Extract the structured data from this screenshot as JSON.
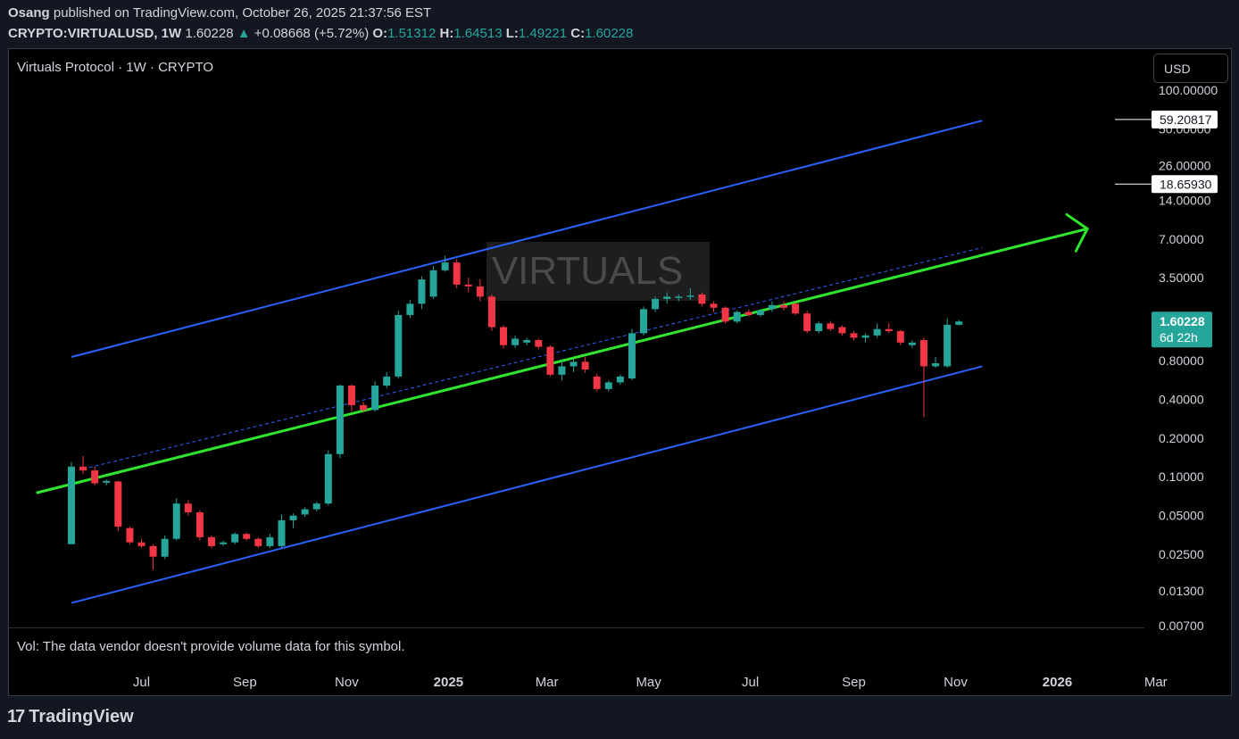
{
  "header": {
    "author": "Osang",
    "published": "published on TradingView.com, October 26, 2025 21:37:56 EST",
    "symbol": "CRYPTO:VIRTUALUSD, 1W",
    "last": "1.60228",
    "arrow": "▲",
    "change": "+0.08668 (+5.72%)",
    "o_label": "O:",
    "o": "1.51312",
    "h_label": "H:",
    "h": "1.64513",
    "l_label": "L:",
    "l": "1.49221",
    "c_label": "C:",
    "c": "1.60228"
  },
  "legend_title": "Virtuals Protocol · 1W · CRYPTO",
  "currency_button": "USD",
  "volume_note": "Vol: The data vendor doesn't provide volume data for this symbol.",
  "watermark": "VIRTUALS",
  "footer_brand": "TradingView",
  "footer_mark": "17",
  "price_tags": {
    "current": "1.60228",
    "countdown": "6d 22h",
    "level_high": "59.20817",
    "level_mid": "18.65930"
  },
  "colors": {
    "up": "#26a69a",
    "down": "#f23645",
    "channel": "#2962ff",
    "midline": "#2ee62e",
    "background": "#000000"
  },
  "chart_data": {
    "type": "candlestick",
    "scale": "log",
    "y_range": [
      0.007,
      100
    ],
    "y_ticks": [
      "100.00000",
      "50.00000",
      "26.00000",
      "14.00000",
      "7.00000",
      "3.50000",
      "1.60000",
      "0.80000",
      "0.40000",
      "0.20000",
      "0.10000",
      "0.05000",
      "0.02500",
      "0.01300",
      "0.00700"
    ],
    "x_ticks": [
      {
        "label": "Jul",
        "date": "2024-07-01",
        "bold": false
      },
      {
        "label": "Sep",
        "date": "2024-09-01",
        "bold": false
      },
      {
        "label": "Nov",
        "date": "2024-11-01",
        "bold": false
      },
      {
        "label": "2025",
        "date": "2025-01-01",
        "bold": true
      },
      {
        "label": "Mar",
        "date": "2025-03-01",
        "bold": false
      },
      {
        "label": "May",
        "date": "2025-05-01",
        "bold": false
      },
      {
        "label": "Jul",
        "date": "2025-07-01",
        "bold": false
      },
      {
        "label": "Sep",
        "date": "2025-09-01",
        "bold": false
      },
      {
        "label": "Nov",
        "date": "2025-11-01",
        "bold": false
      },
      {
        "label": "2026",
        "date": "2026-01-01",
        "bold": true
      },
      {
        "label": "Mar",
        "date": "2026-03-01",
        "bold": false
      }
    ],
    "candles": [
      {
        "date": "2024-05-20",
        "o": 0.03,
        "h": 0.13,
        "l": 0.03,
        "c": 0.12
      },
      {
        "date": "2024-05-27",
        "o": 0.12,
        "h": 0.145,
        "l": 0.105,
        "c": 0.112
      },
      {
        "date": "2024-06-03",
        "o": 0.112,
        "h": 0.12,
        "l": 0.086,
        "c": 0.089
      },
      {
        "date": "2024-06-10",
        "o": 0.09,
        "h": 0.095,
        "l": 0.086,
        "c": 0.093
      },
      {
        "date": "2024-06-17",
        "o": 0.092,
        "h": 0.093,
        "l": 0.038,
        "c": 0.041
      },
      {
        "date": "2024-06-24",
        "o": 0.04,
        "h": 0.041,
        "l": 0.03,
        "c": 0.031
      },
      {
        "date": "2024-07-01",
        "o": 0.031,
        "h": 0.033,
        "l": 0.028,
        "c": 0.029
      },
      {
        "date": "2024-07-08",
        "o": 0.029,
        "h": 0.03,
        "l": 0.019,
        "c": 0.024
      },
      {
        "date": "2024-07-15",
        "o": 0.024,
        "h": 0.035,
        "l": 0.023,
        "c": 0.033
      },
      {
        "date": "2024-07-22",
        "o": 0.033,
        "h": 0.068,
        "l": 0.032,
        "c": 0.062
      },
      {
        "date": "2024-07-29",
        "o": 0.062,
        "h": 0.066,
        "l": 0.05,
        "c": 0.053
      },
      {
        "date": "2024-08-05",
        "o": 0.053,
        "h": 0.055,
        "l": 0.032,
        "c": 0.034
      },
      {
        "date": "2024-08-12",
        "o": 0.034,
        "h": 0.035,
        "l": 0.028,
        "c": 0.029
      },
      {
        "date": "2024-08-19",
        "o": 0.03,
        "h": 0.032,
        "l": 0.029,
        "c": 0.031
      },
      {
        "date": "2024-08-26",
        "o": 0.031,
        "h": 0.037,
        "l": 0.03,
        "c": 0.036
      },
      {
        "date": "2024-09-02",
        "o": 0.036,
        "h": 0.037,
        "l": 0.032,
        "c": 0.033
      },
      {
        "date": "2024-09-09",
        "o": 0.033,
        "h": 0.034,
        "l": 0.028,
        "c": 0.029
      },
      {
        "date": "2024-09-16",
        "o": 0.029,
        "h": 0.036,
        "l": 0.028,
        "c": 0.034
      },
      {
        "date": "2024-09-23",
        "o": 0.029,
        "h": 0.051,
        "l": 0.028,
        "c": 0.046
      },
      {
        "date": "2024-09-30",
        "o": 0.046,
        "h": 0.052,
        "l": 0.04,
        "c": 0.05
      },
      {
        "date": "2024-10-07",
        "o": 0.051,
        "h": 0.058,
        "l": 0.049,
        "c": 0.056
      },
      {
        "date": "2024-10-14",
        "o": 0.056,
        "h": 0.064,
        "l": 0.054,
        "c": 0.062
      },
      {
        "date": "2024-10-21",
        "o": 0.062,
        "h": 0.16,
        "l": 0.06,
        "c": 0.15
      },
      {
        "date": "2024-10-28",
        "o": 0.15,
        "h": 0.52,
        "l": 0.14,
        "c": 0.51
      },
      {
        "date": "2024-11-04",
        "o": 0.51,
        "h": 0.52,
        "l": 0.32,
        "c": 0.36
      },
      {
        "date": "2024-11-11",
        "o": 0.36,
        "h": 0.38,
        "l": 0.32,
        "c": 0.33
      },
      {
        "date": "2024-11-18",
        "o": 0.33,
        "h": 0.55,
        "l": 0.32,
        "c": 0.51
      },
      {
        "date": "2024-11-25",
        "o": 0.51,
        "h": 0.65,
        "l": 0.49,
        "c": 0.6
      },
      {
        "date": "2024-12-02",
        "o": 0.6,
        "h": 1.95,
        "l": 0.58,
        "c": 1.8
      },
      {
        "date": "2024-12-09",
        "o": 1.8,
        "h": 2.35,
        "l": 1.7,
        "c": 2.2
      },
      {
        "date": "2024-12-16",
        "o": 2.2,
        "h": 3.6,
        "l": 2.0,
        "c": 3.4
      },
      {
        "date": "2024-12-23",
        "o": 2.5,
        "h": 4.3,
        "l": 2.4,
        "c": 4.0
      },
      {
        "date": "2024-12-30",
        "o": 4.0,
        "h": 5.2,
        "l": 3.9,
        "c": 4.6
      },
      {
        "date": "2025-01-06",
        "o": 4.6,
        "h": 4.9,
        "l": 2.9,
        "c": 3.1
      },
      {
        "date": "2025-01-13",
        "o": 3.1,
        "h": 3.5,
        "l": 2.7,
        "c": 3.0
      },
      {
        "date": "2025-01-20",
        "o": 3.0,
        "h": 3.4,
        "l": 2.3,
        "c": 2.5
      },
      {
        "date": "2025-01-27",
        "o": 2.5,
        "h": 2.6,
        "l": 1.35,
        "c": 1.45
      },
      {
        "date": "2025-02-03",
        "o": 1.45,
        "h": 1.5,
        "l": 0.99,
        "c": 1.05
      },
      {
        "date": "2025-02-10",
        "o": 1.05,
        "h": 1.25,
        "l": 1.0,
        "c": 1.18
      },
      {
        "date": "2025-02-17",
        "o": 1.1,
        "h": 1.2,
        "l": 1.05,
        "c": 1.15
      },
      {
        "date": "2025-02-24",
        "o": 1.15,
        "h": 1.18,
        "l": 0.98,
        "c": 1.02
      },
      {
        "date": "2025-03-03",
        "o": 1.02,
        "h": 1.05,
        "l": 0.6,
        "c": 0.62
      },
      {
        "date": "2025-03-10",
        "o": 0.62,
        "h": 0.82,
        "l": 0.56,
        "c": 0.72
      },
      {
        "date": "2025-03-17",
        "o": 0.72,
        "h": 0.82,
        "l": 0.65,
        "c": 0.78
      },
      {
        "date": "2025-03-24",
        "o": 0.78,
        "h": 0.85,
        "l": 0.64,
        "c": 0.68
      },
      {
        "date": "2025-03-31",
        "o": 0.6,
        "h": 0.63,
        "l": 0.46,
        "c": 0.48
      },
      {
        "date": "2025-04-07",
        "o": 0.48,
        "h": 0.56,
        "l": 0.46,
        "c": 0.54
      },
      {
        "date": "2025-04-14",
        "o": 0.54,
        "h": 0.62,
        "l": 0.52,
        "c": 0.6
      },
      {
        "date": "2025-04-21",
        "o": 0.58,
        "h": 1.4,
        "l": 0.56,
        "c": 1.3
      },
      {
        "date": "2025-04-28",
        "o": 1.3,
        "h": 2.1,
        "l": 1.25,
        "c": 2.0
      },
      {
        "date": "2025-05-05",
        "o": 2.0,
        "h": 2.5,
        "l": 1.9,
        "c": 2.4
      },
      {
        "date": "2025-05-12",
        "o": 2.4,
        "h": 2.7,
        "l": 2.2,
        "c": 2.5
      },
      {
        "date": "2025-05-19",
        "o": 2.45,
        "h": 2.6,
        "l": 2.3,
        "c": 2.5
      },
      {
        "date": "2025-05-26",
        "o": 2.5,
        "h": 2.9,
        "l": 2.35,
        "c": 2.55
      },
      {
        "date": "2025-06-02",
        "o": 2.6,
        "h": 2.7,
        "l": 2.1,
        "c": 2.2
      },
      {
        "date": "2025-06-09",
        "o": 2.2,
        "h": 2.3,
        "l": 1.9,
        "c": 2.05
      },
      {
        "date": "2025-06-16",
        "o": 2.05,
        "h": 2.1,
        "l": 1.55,
        "c": 1.6
      },
      {
        "date": "2025-06-23",
        "o": 1.6,
        "h": 1.95,
        "l": 1.55,
        "c": 1.9
      },
      {
        "date": "2025-06-30",
        "o": 1.9,
        "h": 2.0,
        "l": 1.75,
        "c": 1.8
      },
      {
        "date": "2025-07-07",
        "o": 1.8,
        "h": 2.0,
        "l": 1.75,
        "c": 1.95
      },
      {
        "date": "2025-07-14",
        "o": 2.0,
        "h": 2.3,
        "l": 1.9,
        "c": 2.15
      },
      {
        "date": "2025-07-21",
        "o": 2.15,
        "h": 2.3,
        "l": 1.95,
        "c": 2.05
      },
      {
        "date": "2025-07-28",
        "o": 2.2,
        "h": 2.25,
        "l": 1.8,
        "c": 1.85
      },
      {
        "date": "2025-08-04",
        "o": 1.85,
        "h": 1.95,
        "l": 1.3,
        "c": 1.35
      },
      {
        "date": "2025-08-11",
        "o": 1.35,
        "h": 1.6,
        "l": 1.3,
        "c": 1.55
      },
      {
        "date": "2025-08-18",
        "o": 1.55,
        "h": 1.62,
        "l": 1.35,
        "c": 1.4
      },
      {
        "date": "2025-08-25",
        "o": 1.45,
        "h": 1.5,
        "l": 1.25,
        "c": 1.3
      },
      {
        "date": "2025-09-01",
        "o": 1.3,
        "h": 1.35,
        "l": 1.15,
        "c": 1.2
      },
      {
        "date": "2025-09-08",
        "o": 1.2,
        "h": 1.3,
        "l": 1.1,
        "c": 1.25
      },
      {
        "date": "2025-09-15",
        "o": 1.25,
        "h": 1.55,
        "l": 1.2,
        "c": 1.4
      },
      {
        "date": "2025-09-22",
        "o": 1.4,
        "h": 1.55,
        "l": 1.3,
        "c": 1.35
      },
      {
        "date": "2025-09-29",
        "o": 1.35,
        "h": 1.38,
        "l": 1.05,
        "c": 1.1
      },
      {
        "date": "2025-10-06",
        "o": 1.05,
        "h": 1.15,
        "l": 1.0,
        "c": 1.1
      },
      {
        "date": "2025-10-13",
        "o": 1.15,
        "h": 1.2,
        "l": 0.29,
        "c": 0.72
      },
      {
        "date": "2025-10-20",
        "o": 0.72,
        "h": 0.85,
        "l": 0.7,
        "c": 0.76
      },
      {
        "date": "2025-10-27",
        "o": 0.72,
        "h": 1.7,
        "l": 0.7,
        "c": 1.513
      },
      {
        "date": "2025-11-03",
        "o": 1.513,
        "h": 1.645,
        "l": 1.492,
        "c": 1.602
      }
    ],
    "drawings": [
      {
        "name": "channel-upper-line",
        "kind": "trend",
        "from": {
          "date": "2024-05-20",
          "price": 0.85
        },
        "to": {
          "date": "2025-11-17",
          "price": 58.0
        },
        "color": "#2962ff"
      },
      {
        "name": "channel-lower-line",
        "kind": "trend",
        "from": {
          "date": "2024-05-20",
          "price": 0.0105
        },
        "to": {
          "date": "2025-11-17",
          "price": 0.72
        },
        "color": "#2962ff"
      },
      {
        "name": "channel-mid-line",
        "kind": "arrow",
        "from": {
          "date": "2024-04-29",
          "price": 0.075
        },
        "to": {
          "date": "2026-01-19",
          "price": 8.4
        },
        "color": "#2ee62e"
      },
      {
        "name": "dashed-mid-line",
        "kind": "dashed",
        "from": {
          "date": "2024-05-27",
          "price": 0.115
        },
        "to": {
          "date": "2025-11-17",
          "price": 6.0
        },
        "color": "#2962ff"
      }
    ]
  }
}
